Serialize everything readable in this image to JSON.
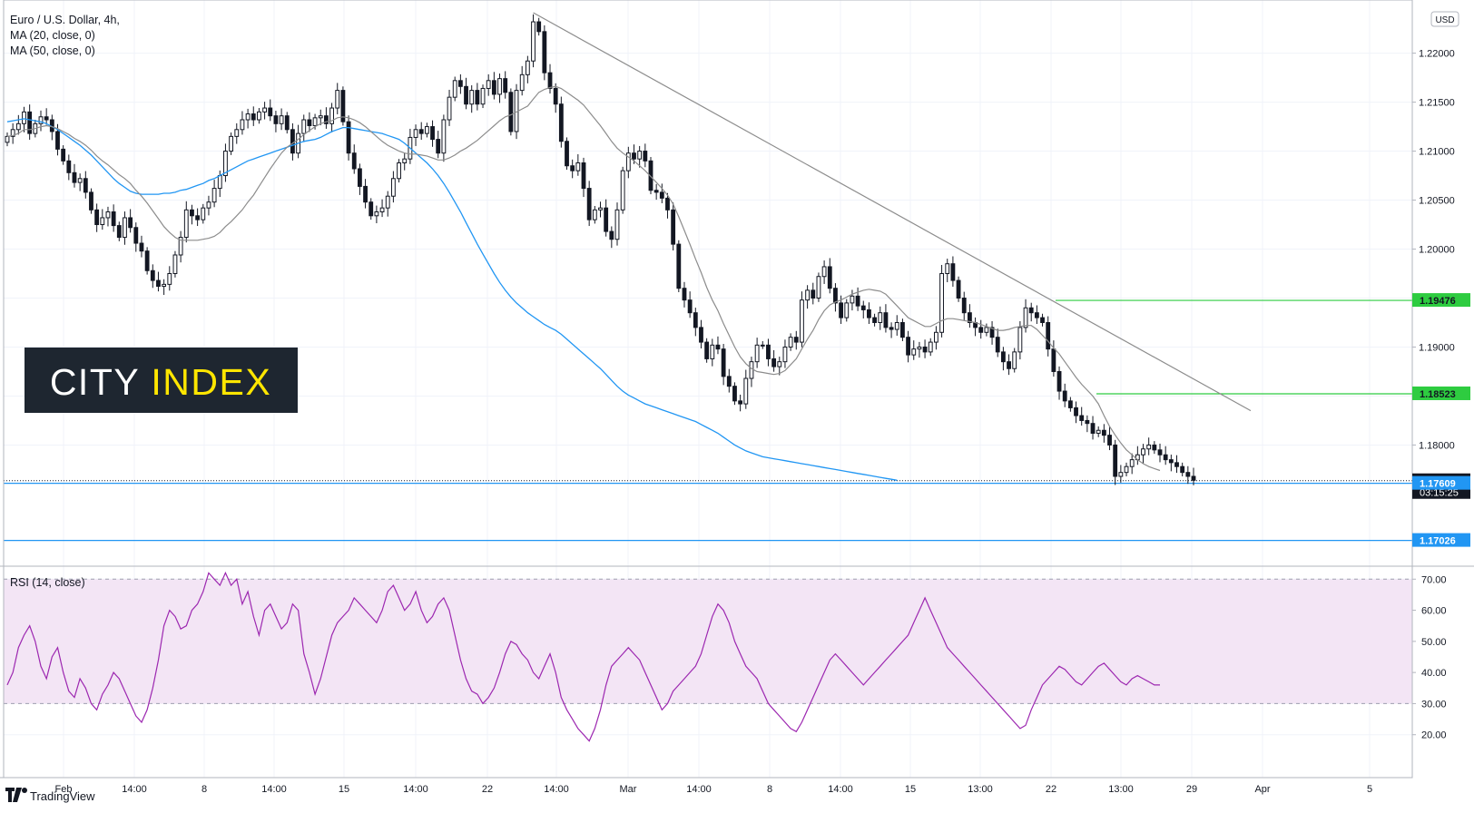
{
  "header": {
    "title": "Euro / U.S. Dollar, 4h,",
    "indicators": [
      "MA (20, close, 0)",
      "MA (50, close, 0)"
    ]
  },
  "price_axis": {
    "currency_badge": "USD",
    "ticks": [
      "1.22000",
      "1.21500",
      "1.21000",
      "1.20500",
      "1.20000",
      "1.19500",
      "1.19000",
      "1.18500",
      "1.18000"
    ]
  },
  "price_tags": [
    {
      "value": "1.19476",
      "price": 1.19476,
      "color": "#2ecc40",
      "text_color": "#131722"
    },
    {
      "value": "1.18523",
      "price": 1.18523,
      "color": "#2ecc40",
      "text_color": "#131722"
    },
    {
      "value": "1.17636",
      "price": 1.17636,
      "color": "#131722",
      "text_color": "#ffffff",
      "sub": "03:15:25"
    },
    {
      "value": "1.17609",
      "price": 1.17609,
      "color": "#2196f3",
      "text_color": "#ffffff"
    },
    {
      "value": "1.17026",
      "price": 1.17026,
      "color": "#2196f3",
      "text_color": "#ffffff"
    }
  ],
  "logo": {
    "part1": "CITY",
    "part2": "INDEX",
    "bg_color": "#1e2630",
    "color1": "#ffffff",
    "color2": "#ffe600"
  },
  "rsi": {
    "label": "RSI (14, close)",
    "ticks": [
      "70.00",
      "60.00",
      "50.00",
      "40.00",
      "30.00",
      "20.00"
    ],
    "band": [
      30,
      70
    ],
    "line_color": "#9c27b0",
    "band_color": "#f3e5f5"
  },
  "time_axis": {
    "labels": [
      "Feb",
      "14:00",
      "8",
      "14:00",
      "15",
      "14:00",
      "22",
      "14:00",
      "Mar",
      "14:00",
      "8",
      "14:00",
      "15",
      "13:00",
      "22",
      "13:00",
      "29",
      "Apr",
      "5"
    ]
  },
  "footer": {
    "brand": "TradingView"
  },
  "chart_data": {
    "type": "line",
    "title": "Euro / U.S. Dollar, 4h,",
    "chart_style": "candlestick",
    "ylim": [
      1.168,
      1.2245
    ],
    "rsi_ylim": [
      17,
      73
    ],
    "series": [
      {
        "name": "Euro / U.S. Dollar",
        "color": "#131722",
        "values": [
          1.2115,
          1.2122,
          1.2128,
          1.214,
          1.2118,
          1.2128,
          1.2135,
          1.2132,
          1.212,
          1.2102,
          1.209,
          1.2078,
          1.2068,
          1.2072,
          1.2058,
          1.204,
          1.2025,
          1.2032,
          1.2038,
          1.2024,
          1.2012,
          1.2032,
          1.2022,
          1.2006,
          1.1998,
          1.1978,
          1.1968,
          1.1962,
          1.1964,
          1.1975,
          1.1994,
          1.2012,
          1.204,
          1.2034,
          1.203,
          1.2042,
          1.2048,
          1.2062,
          1.2075,
          1.21,
          1.2115,
          1.2122,
          1.2132,
          1.2138,
          1.2132,
          1.214,
          1.2144,
          1.2136,
          1.2128,
          1.2136,
          1.2122,
          1.2098,
          1.2118,
          1.2132,
          1.2126,
          1.2134,
          1.2136,
          1.2128,
          1.2144,
          1.2162,
          1.213,
          1.2098,
          1.2082,
          1.2064,
          1.2048,
          1.2034,
          1.2038,
          1.2042,
          1.2054,
          1.2072,
          1.2088,
          1.2092,
          1.2114,
          1.2122,
          1.2118,
          1.2125,
          1.2112,
          1.2098,
          1.2132,
          1.2155,
          1.2172,
          1.2166,
          1.2148,
          1.2162,
          1.2148,
          1.2164,
          1.2172,
          1.2158,
          1.2174,
          1.216,
          1.212,
          1.2162,
          1.2178,
          1.2192,
          1.2232,
          1.2222,
          1.218,
          1.2164,
          1.2148,
          1.211,
          1.2085,
          1.208,
          1.2088,
          1.2062,
          1.203,
          1.204,
          1.2042,
          1.2018,
          1.201,
          1.204,
          1.208,
          1.2098,
          1.2092,
          1.21,
          1.209,
          1.206,
          1.2058,
          1.2052,
          1.204,
          1.2005,
          1.196,
          1.1948,
          1.1935,
          1.192,
          1.1905,
          1.1888,
          1.1902,
          1.1898,
          1.187,
          1.186,
          1.1845,
          1.1842,
          1.1868,
          1.1885,
          1.1902,
          1.1902,
          1.1888,
          1.188,
          1.1885,
          1.19,
          1.191,
          1.1905,
          1.1948,
          1.1958,
          1.195,
          1.1972,
          1.1982,
          1.196,
          1.1945,
          1.193,
          1.1945,
          1.1952,
          1.1942,
          1.1938,
          1.193,
          1.1925,
          1.1935,
          1.192,
          1.1918,
          1.1925,
          1.191,
          1.1892,
          1.1898,
          1.19,
          1.1895,
          1.1905,
          1.1915,
          1.1975,
          1.1985,
          1.1968,
          1.195,
          1.1935,
          1.1925,
          1.192,
          1.1915,
          1.192,
          1.191,
          1.1895,
          1.1885,
          1.1878,
          1.1895,
          1.192,
          1.194,
          1.1935,
          1.193,
          1.1925,
          1.1898,
          1.1875,
          1.1855,
          1.1845,
          1.1838,
          1.183,
          1.1825,
          1.1822,
          1.1812,
          1.1815,
          1.181,
          1.18,
          1.1768,
          1.1772,
          1.1778,
          1.1785,
          1.179,
          1.1796,
          1.18,
          1.1795,
          1.179,
          1.1785,
          1.1782,
          1.1778,
          1.1772,
          1.1768,
          1.1764
        ]
      },
      {
        "name": "MA (20, close, 0)",
        "color": "#8c8c8c",
        "values": [
          1.2115,
          1.2116,
          1.2118,
          1.2122,
          1.2122,
          1.2123,
          1.2125,
          1.2126,
          1.2125,
          1.2123,
          1.212,
          1.2117,
          1.2113,
          1.211,
          1.2106,
          1.2101,
          1.2095,
          1.209,
          1.2086,
          1.2081,
          1.2076,
          1.2072,
          1.2067,
          1.206,
          1.2054,
          1.2047,
          1.2039,
          1.2031,
          1.2023,
          1.2017,
          1.2012,
          1.2009,
          1.2009,
          1.2009,
          1.2009,
          1.201,
          1.2011,
          1.2013,
          1.2017,
          1.2023,
          1.2028,
          1.2034,
          1.204,
          1.2048,
          1.2055,
          1.2064,
          1.2073,
          1.2082,
          1.209,
          1.2098,
          1.2104,
          1.2108,
          1.2112,
          1.2117,
          1.2121,
          1.2125,
          1.2128,
          1.213,
          1.2131,
          1.2134,
          1.2135,
          1.2134,
          1.2132,
          1.2129,
          1.2125,
          1.212,
          1.2115,
          1.211,
          1.2106,
          1.2103,
          1.21,
          1.2098,
          1.2097,
          1.2097,
          1.2096,
          1.2095,
          1.2093,
          1.2091,
          1.2091,
          1.2093,
          1.2096,
          1.21,
          1.2103,
          1.2107,
          1.2111,
          1.2116,
          1.2121,
          1.2126,
          1.2131,
          1.2135,
          1.2137,
          1.214,
          1.2143,
          1.2146,
          1.2153,
          1.216,
          1.2163,
          1.2165,
          1.2166,
          1.2164,
          1.216,
          1.2156,
          1.2152,
          1.2147,
          1.214,
          1.2133,
          1.2126,
          1.2118,
          1.211,
          1.2103,
          1.2098,
          1.2094,
          1.209,
          1.2085,
          1.208,
          1.2074,
          1.2068,
          1.2062,
          1.2055,
          1.2046,
          1.2033,
          1.2019,
          1.2005,
          1.199,
          1.1976,
          1.1961,
          1.1948,
          1.1937,
          1.1924,
          1.1912,
          1.19,
          1.189,
          1.1883,
          1.1878,
          1.1875,
          1.1874,
          1.1873,
          1.1872,
          1.1873,
          1.1876,
          1.1882,
          1.1888,
          1.1898,
          1.1908,
          1.1917,
          1.1928,
          1.1937,
          1.1943,
          1.1946,
          1.1948,
          1.1951,
          1.1954,
          1.1956,
          1.1958,
          1.1959,
          1.1958,
          1.1957,
          1.1954,
          1.1948,
          1.1942,
          1.1936,
          1.193,
          1.1927,
          1.1924,
          1.1921,
          1.1921,
          1.1924,
          1.1927,
          1.1929,
          1.1929,
          1.1928,
          1.1927,
          1.1926,
          1.1925,
          1.1923,
          1.1921,
          1.1919,
          1.1917,
          1.1917,
          1.1918,
          1.192,
          1.1921,
          1.1922,
          1.1922,
          1.1918,
          1.1912,
          1.1906,
          1.1899,
          1.1893,
          1.1885,
          1.1877,
          1.1869,
          1.1862,
          1.1856,
          1.185,
          1.1842,
          1.183,
          1.1819,
          1.181,
          1.1802,
          1.1795,
          1.179,
          1.1785,
          1.1781,
          1.1778,
          1.1776,
          1.1774
        ]
      },
      {
        "name": "MA (50, close, 0)",
        "color": "#2196f3",
        "values": [
          1.213,
          1.2131,
          1.2132,
          1.2133,
          1.2132,
          1.2131,
          1.213,
          1.2128,
          1.2125,
          1.2122,
          1.2118,
          1.2114,
          1.211,
          1.2106,
          1.2101,
          1.2096,
          1.209,
          1.2084,
          1.2078,
          1.2072,
          1.2067,
          1.2063,
          1.2059,
          1.2057,
          1.2056,
          1.2056,
          1.2056,
          1.2056,
          1.2057,
          1.2057,
          1.2058,
          1.206,
          1.2061,
          1.2063,
          1.2065,
          1.2067,
          1.207,
          1.2072,
          1.2075,
          1.2078,
          1.2081,
          1.2084,
          1.2087,
          1.209,
          1.2092,
          1.2094,
          1.2096,
          1.2098,
          1.21,
          1.2102,
          1.2104,
          1.2106,
          1.2108,
          1.211,
          1.2111,
          1.2112,
          1.2114,
          1.2117,
          1.212,
          1.2122,
          1.2124,
          1.2124,
          1.2123,
          1.2122,
          1.2121,
          1.212,
          1.2119,
          1.2118,
          1.2116,
          1.2114,
          1.2112,
          1.2108,
          1.2103,
          1.2098,
          1.2093,
          1.2088,
          1.2082,
          1.2075,
          1.2067,
          1.2058,
          1.2048,
          1.2038,
          1.2027,
          1.2016,
          1.2005,
          1.1995,
          1.1985,
          1.1975,
          1.1966,
          1.1958,
          1.1951,
          1.1945,
          1.194,
          1.1935,
          1.1931,
          1.1927,
          1.1923,
          1.192,
          1.1917,
          1.1913,
          1.1908,
          1.1903,
          1.1898,
          1.1893,
          1.1888,
          1.1883,
          1.1878,
          1.1872,
          1.1866,
          1.186,
          1.1855,
          1.1851,
          1.1848,
          1.1845,
          1.1842,
          1.184,
          1.1838,
          1.1836,
          1.1834,
          1.1832,
          1.183,
          1.1828,
          1.1826,
          1.1824,
          1.1821,
          1.1818,
          1.1815,
          1.1812,
          1.1808,
          1.1804,
          1.18,
          1.1797,
          1.1794,
          1.1792,
          1.179,
          1.1788,
          1.1787,
          1.1786,
          1.1785,
          1.1784,
          1.1783,
          1.1782,
          1.1781,
          1.178,
          1.1779,
          1.1778,
          1.1777,
          1.1776,
          1.1775,
          1.1774,
          1.1773,
          1.1772,
          1.1771,
          1.177,
          1.1769,
          1.1768,
          1.1767,
          1.1766,
          1.1765,
          1.1764
        ]
      },
      {
        "name": "RSI (14, close)",
        "color": "#9c27b0",
        "values": [
          36,
          40,
          48,
          52,
          55,
          50,
          42,
          38,
          45,
          48,
          40,
          34,
          32,
          38,
          35,
          30,
          28,
          33,
          36,
          40,
          38,
          34,
          30,
          26,
          24,
          28,
          35,
          44,
          55,
          60,
          58,
          54,
          55,
          60,
          62,
          66,
          72,
          70,
          68,
          72,
          68,
          70,
          62,
          66,
          58,
          52,
          60,
          62,
          58,
          54,
          56,
          62,
          60,
          46,
          40,
          33,
          38,
          45,
          52,
          56,
          58,
          60,
          64,
          62,
          60,
          58,
          56,
          60,
          66,
          68,
          64,
          60,
          62,
          66,
          60,
          56,
          58,
          62,
          64,
          60,
          52,
          44,
          38,
          34,
          33,
          30,
          32,
          35,
          40,
          46,
          50,
          49,
          46,
          44,
          40,
          38,
          42,
          46,
          40,
          32,
          28,
          25,
          22,
          20,
          18,
          22,
          28,
          36,
          42,
          44,
          46,
          48,
          46,
          44,
          40,
          36,
          32,
          28,
          30,
          34,
          36,
          38,
          40,
          42,
          46,
          52,
          58,
          62,
          60,
          56,
          50,
          46,
          42,
          40,
          38,
          34,
          30,
          28,
          26,
          24,
          22,
          21,
          24,
          28,
          32,
          36,
          40,
          44,
          46,
          44,
          42,
          40,
          38,
          36,
          38,
          40,
          42,
          44,
          46,
          48,
          50,
          52,
          56,
          60,
          64,
          60,
          56,
          52,
          48,
          46,
          44,
          42,
          40,
          38,
          36,
          34,
          32,
          30,
          28,
          26,
          24,
          22,
          23,
          28,
          32,
          36,
          38,
          40,
          42,
          41,
          39,
          37,
          36,
          38,
          40,
          42,
          43,
          41,
          39,
          37,
          36,
          38,
          39,
          38,
          37,
          36,
          36
        ]
      }
    ]
  }
}
